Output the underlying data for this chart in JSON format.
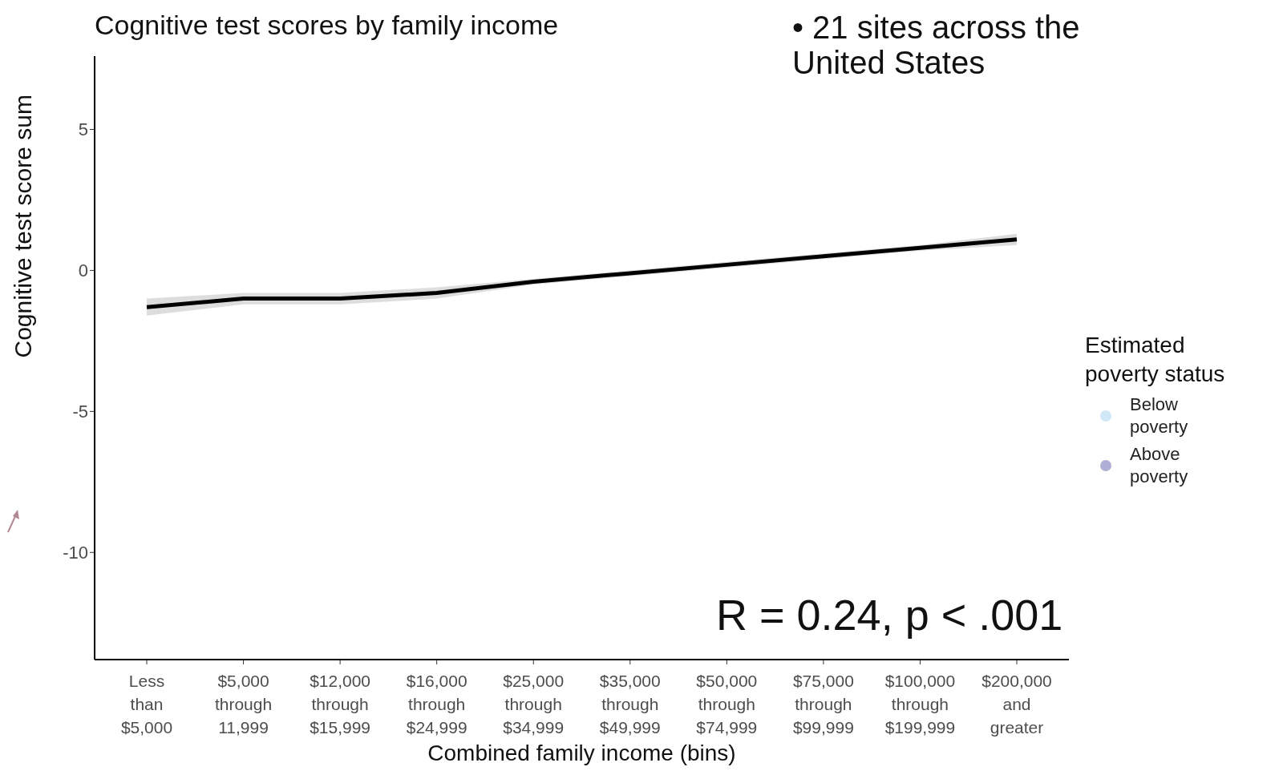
{
  "chart_data": {
    "type": "line",
    "title": "Cognitive test scores by family income",
    "xlabel": "Combined family income (bins)",
    "ylabel": "Cognitive test score sum",
    "legend_title": "Estimated poverty status",
    "legend": "right",
    "grid": false,
    "categories": [
      "Less than $5,000",
      "$5,000 through 11,999",
      "$12,000 through $15,999",
      "$16,000 through $24,999",
      "$25,000 through $34,999",
      "$35,000 through $49,999",
      "$50,000 through $74,999",
      "$75,000 through $99,999",
      "$100,000 through $199,999",
      "$200,000 and greater"
    ],
    "ylim": [
      -13.8,
      7.6
    ],
    "yticks": [
      -10,
      -5,
      0,
      5
    ],
    "series": [
      {
        "color": "#000000",
        "values": [
          -1.3,
          -1.0,
          -1.0,
          -0.8,
          -0.4,
          -0.1,
          0.2,
          0.5,
          0.8,
          1.1
        ],
        "lower": [
          -1.6,
          -1.2,
          -1.2,
          -1.0,
          -0.5,
          -0.2,
          0.1,
          0.4,
          0.7,
          0.9
        ],
        "upper": [
          -1.0,
          -0.8,
          -0.8,
          -0.6,
          -0.3,
          0.0,
          0.3,
          0.6,
          0.9,
          1.3
        ]
      },
      {
        "type": "scatter",
        "name": "Below poverty",
        "color": "#c6e2f7",
        "marker": "circle",
        "values": [
          null,
          null,
          null,
          null,
          null,
          null,
          null,
          null,
          null,
          null
        ]
      },
      {
        "type": "scatter",
        "name": "Above poverty",
        "color": "#9b9bcc",
        "marker": "circle",
        "values": [
          null,
          null,
          null,
          null,
          null,
          null,
          null,
          null,
          null,
          null
        ]
      }
    ],
    "annotations": [
      "• 21 sites across the United States",
      "R = 0.24, p < .001"
    ]
  }
}
